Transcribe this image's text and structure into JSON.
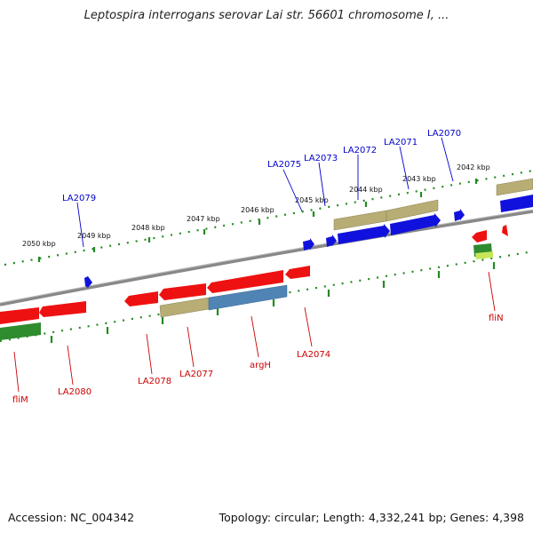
{
  "title": "Leptospira interrogans serovar Lai str. 56601 chromosome I, ...",
  "footer": {
    "accession": "Accession: NC_004342",
    "topology": "Topology: circular; Length: 4,332,241 bp; Genes: 4,398"
  },
  "colors": {
    "forward_label": "#0000cc",
    "reverse_label": "#cc0000",
    "red_gene": "#ee1111",
    "blue_gene": "#1111dd",
    "olive_gene": "#b7ad75",
    "steelblue_gene": "#4f84b5",
    "green_gene": "#2e8b2e",
    "backbone": "#888888",
    "tick": "#228b22"
  },
  "scale_labels": [
    "2050 kbp",
    "2049 kbp",
    "2048 kbp",
    "2047 kbp",
    "2046 kbp",
    "2045 kbp",
    "2044 kbp",
    "2043 kbp",
    "2042 kbp"
  ],
  "forward_gene_labels": [
    "LA2079",
    "LA2075",
    "LA2073",
    "LA2072",
    "LA2071",
    "LA2070"
  ],
  "reverse_gene_labels": [
    "fliM",
    "LA2080",
    "LA2078",
    "LA2077",
    "argH",
    "LA2074",
    "fliN"
  ]
}
